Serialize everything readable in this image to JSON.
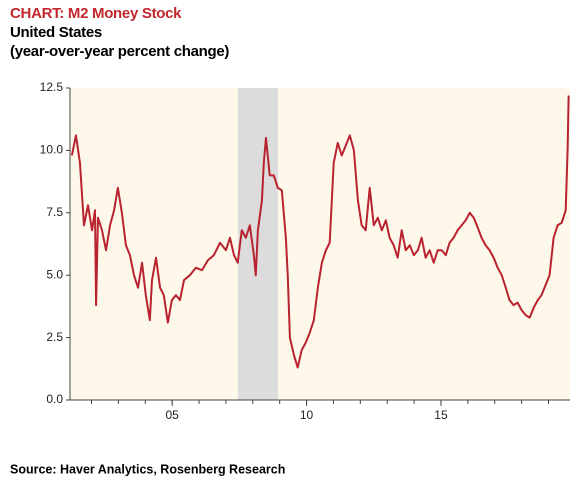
{
  "chart_data": {
    "type": "line",
    "title": "CHART: M2 Money Stock",
    "subtitle": [
      "United States",
      "(year-over-year percent change)"
    ],
    "source": "Source: Haver Analytics, Rosenberg Research",
    "xlim": [
      2001.2,
      2019.8
    ],
    "xticks": [
      {
        "value": 2005,
        "label": "05"
      },
      {
        "value": 2010,
        "label": "10"
      },
      {
        "value": 2015,
        "label": "15"
      }
    ],
    "xminor": [
      2002,
      2003,
      2004,
      2005,
      2006,
      2007,
      2008,
      2009,
      2010,
      2011,
      2012,
      2013,
      2014,
      2015,
      2016,
      2017,
      2018,
      2019
    ],
    "ylim": [
      0,
      12.5
    ],
    "yticks": [
      {
        "value": 0,
        "label": "0.0"
      },
      2.5,
      {
        "value": 5,
        "label": "5.0"
      },
      7.5,
      {
        "value": 10,
        "label": "10.0"
      },
      12.5
    ],
    "recession": [
      2007.45,
      2008.94
    ],
    "recession_color": "#dcdcdc",
    "background": "#fdf8ea",
    "x": [
      2001.27,
      2001.42,
      2001.57,
      2001.72,
      2001.87,
      2002.02,
      2002.13,
      2002.17,
      2002.24,
      2002.39,
      2002.54,
      2002.69,
      2002.84,
      2002.98,
      2003.13,
      2003.28,
      2003.43,
      2003.58,
      2003.73,
      2003.88,
      2004.02,
      2004.17,
      2004.25,
      2004.4,
      2004.55,
      2004.69,
      2004.84,
      2004.99,
      2005.14,
      2005.29,
      2005.44,
      2005.66,
      2005.88,
      2006.11,
      2006.33,
      2006.55,
      2006.78,
      2007.0,
      2007.15,
      2007.3,
      2007.44,
      2007.59,
      2007.74,
      2007.89,
      2008.04,
      2008.11,
      2008.19,
      2008.34,
      2008.41,
      2008.49,
      2008.63,
      2008.78,
      2008.93,
      2009.08,
      2009.23,
      2009.3,
      2009.38,
      2009.53,
      2009.67,
      2009.82,
      2009.97,
      2010.12,
      2010.27,
      2010.42,
      2010.57,
      2010.72,
      2010.86,
      2011.01,
      2011.16,
      2011.31,
      2011.46,
      2011.61,
      2011.76,
      2011.91,
      2012.05,
      2012.2,
      2012.35,
      2012.5,
      2012.65,
      2012.8,
      2012.95,
      2013.09,
      2013.24,
      2013.39,
      2013.54,
      2013.69,
      2013.84,
      2013.99,
      2014.14,
      2014.28,
      2014.43,
      2014.58,
      2014.73,
      2014.88,
      2015.03,
      2015.18,
      2015.32,
      2015.47,
      2015.62,
      2015.77,
      2015.92,
      2016.07,
      2016.22,
      2016.37,
      2016.51,
      2016.66,
      2016.81,
      2016.96,
      2017.11,
      2017.26,
      2017.41,
      2017.55,
      2017.7,
      2017.85,
      2018.0,
      2018.15,
      2018.3,
      2018.45,
      2018.6,
      2018.74,
      2018.89,
      2019.04,
      2019.19,
      2019.34,
      2019.49,
      2019.64,
      2019.71,
      2019.75
    ],
    "series": [
      {
        "color": "#b8232f",
        "values": [
          9.8,
          10.6,
          9.5,
          7.0,
          7.8,
          6.8,
          7.6,
          3.8,
          7.3,
          6.8,
          6.0,
          7.0,
          7.6,
          8.5,
          7.5,
          6.2,
          5.8,
          5.0,
          4.5,
          5.5,
          4.2,
          3.2,
          4.8,
          5.7,
          4.5,
          4.2,
          3.1,
          4.0,
          4.2,
          4.0,
          4.8,
          5.0,
          5.3,
          5.2,
          5.6,
          5.8,
          6.3,
          6.0,
          6.5,
          5.8,
          5.5,
          6.8,
          6.5,
          7.0,
          5.8,
          5.0,
          6.8,
          8.0,
          9.5,
          10.5,
          9.0,
          9.0,
          8.5,
          8.4,
          6.5,
          5.0,
          2.5,
          1.8,
          1.3,
          2.0,
          2.3,
          2.7,
          3.2,
          4.5,
          5.5,
          6.0,
          6.3,
          9.5,
          10.3,
          9.8,
          10.2,
          10.6,
          10.0,
          8.0,
          7.0,
          6.8,
          8.5,
          7.0,
          7.3,
          6.8,
          7.2,
          6.5,
          6.2,
          5.7,
          6.8,
          6.0,
          6.2,
          5.8,
          6.0,
          6.5,
          5.7,
          6.0,
          5.5,
          6.0,
          6.0,
          5.8,
          6.3,
          6.5,
          6.8,
          7.0,
          7.2,
          7.5,
          7.3,
          6.9,
          6.5,
          6.2,
          6.0,
          5.7,
          5.3,
          5.0,
          4.5,
          4.0,
          3.8,
          3.9,
          3.6,
          3.4,
          3.3,
          3.7,
          4.0,
          4.2,
          4.6,
          5.0,
          6.5,
          7.0,
          7.1,
          7.6,
          10.0,
          12.2
        ]
      }
    ]
  }
}
